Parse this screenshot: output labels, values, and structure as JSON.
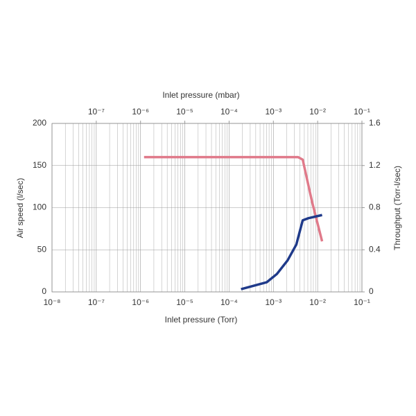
{
  "chart_data": {
    "type": "line",
    "xlabel": "Inlet pressure (Torr)",
    "x2label": "Inlet pressure (mbar)",
    "ylabel": "Air speed (l/sec)",
    "y2label": "Throughput (Torr-l/sec)",
    "xscale": "log",
    "xlim": [
      1e-08,
      0.1
    ],
    "xticks": [
      {
        "value": 1e-08,
        "label": "10⁻⁸"
      },
      {
        "value": 1e-07,
        "label": "10⁻⁷"
      },
      {
        "value": 1e-06,
        "label": "10⁻⁶"
      },
      {
        "value": 1e-05,
        "label": "10⁻⁵"
      },
      {
        "value": 0.0001,
        "label": "10⁻⁴"
      },
      {
        "value": 0.001,
        "label": "10⁻³"
      },
      {
        "value": 0.01,
        "label": "10⁻²"
      },
      {
        "value": 0.1,
        "label": "10⁻¹"
      }
    ],
    "x2lim": [
      1e-08,
      0.1
    ],
    "x2ticks": [
      {
        "value": 1e-07,
        "label": "10⁻⁷"
      },
      {
        "value": 1e-06,
        "label": "10⁻⁶"
      },
      {
        "value": 1e-05,
        "label": "10⁻⁵"
      },
      {
        "value": 0.0001,
        "label": "10⁻⁴"
      },
      {
        "value": 0.001,
        "label": "10⁻³"
      },
      {
        "value": 0.01,
        "label": "10⁻²"
      },
      {
        "value": 0.1,
        "label": "10⁻¹"
      }
    ],
    "ylim": [
      0,
      200
    ],
    "yticks": [
      0,
      50,
      100,
      150,
      200
    ],
    "y2lim": [
      0,
      1.6
    ],
    "y2ticks": [
      0,
      0.4,
      0.8,
      1.2,
      1.6
    ],
    "grid": true,
    "minor_grid": true,
    "series": [
      {
        "color": "#e07a8a",
        "axis": "y",
        "x": [
          1.2e-06,
          0.0036,
          0.0046,
          0.0074,
          0.0126
        ],
        "values": [
          160,
          160,
          157,
          108,
          60
        ]
      },
      {
        "color": "#1f3a8a",
        "axis": "y2",
        "x": [
          0.000186,
          0.00071,
          0.0012,
          0.0021,
          0.0033,
          0.0046,
          0.0062,
          0.0126
        ],
        "values": [
          0.026,
          0.092,
          0.17,
          0.3,
          0.45,
          0.68,
          0.7,
          0.73
        ]
      }
    ]
  }
}
